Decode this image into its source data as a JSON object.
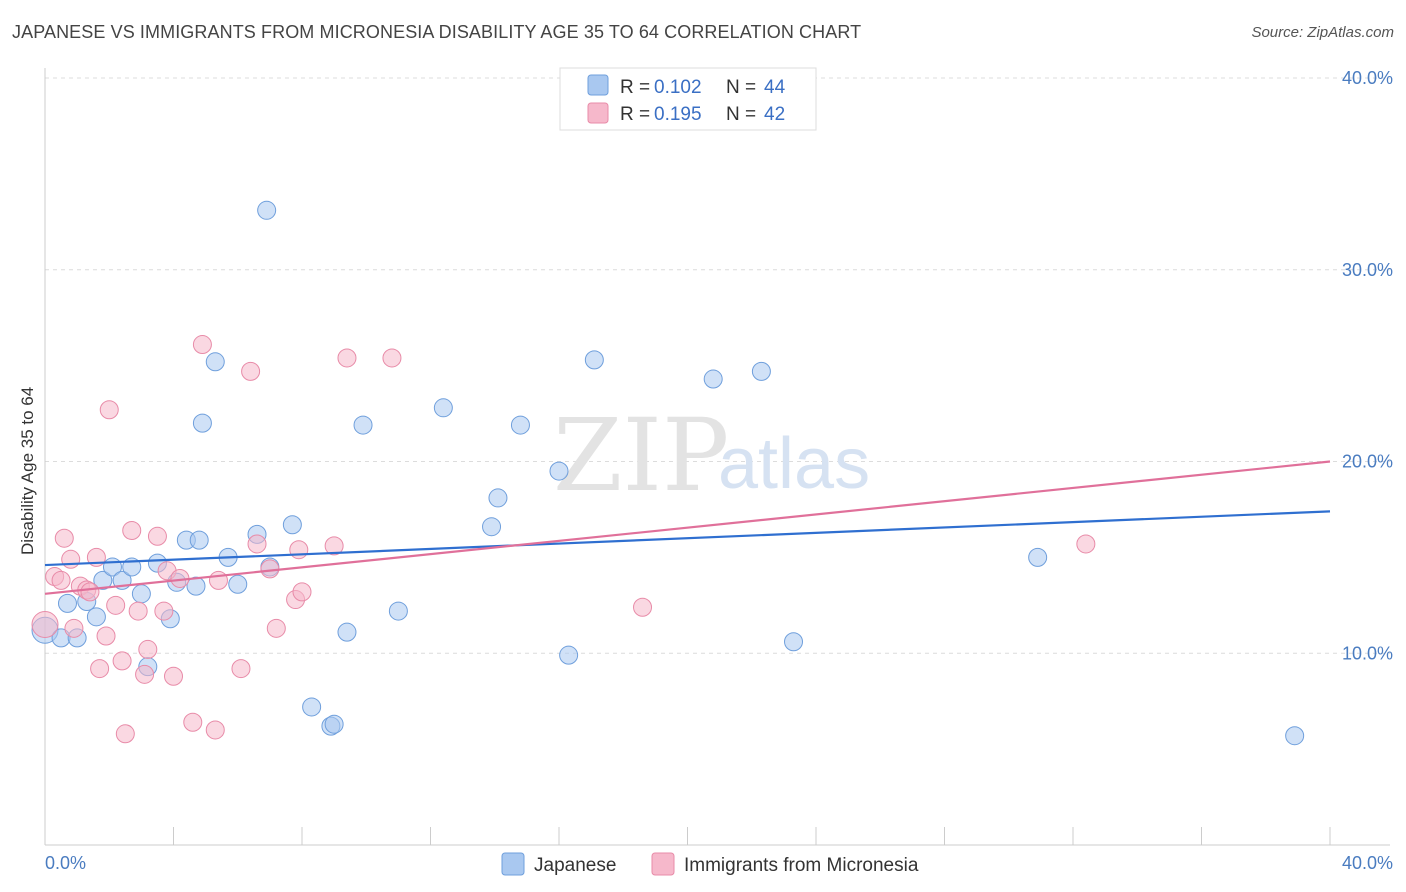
{
  "header": {
    "title": "JAPANESE VS IMMIGRANTS FROM MICRONESIA DISABILITY AGE 35 TO 64 CORRELATION CHART",
    "source": "Source: ZipAtlas.com"
  },
  "watermark": {
    "zip": "ZIP",
    "atlas": "atlas"
  },
  "legend": {
    "rows": [
      {
        "r_label": "R =",
        "r_value": "0.102",
        "n_label": "N =",
        "n_value": "44",
        "color": "#a9c8f0"
      },
      {
        "r_label": "R =",
        "r_value": "0.195",
        "n_label": "N =",
        "n_value": "42",
        "color": "#f6b8cb"
      }
    ]
  },
  "bottom_legend": [
    "Japanese",
    "Immigrants from Micronesia"
  ],
  "chart_data": {
    "type": "scatter",
    "title": "JAPANESE VS IMMIGRANTS FROM MICRONESIA DISABILITY AGE 35 TO 64 CORRELATION CHART",
    "xlabel": "",
    "ylabel": "Disability Age 35 to 64",
    "xlim": [
      0,
      40
    ],
    "ylim": [
      0,
      40
    ],
    "x_tick_labels": [
      "0.0%",
      "40.0%"
    ],
    "y_tick_labels": [
      "10.0%",
      "20.0%",
      "30.0%",
      "40.0%"
    ],
    "y_ticks": [
      10,
      20,
      30,
      40
    ],
    "grid": true,
    "legend_position": "top-center",
    "series": [
      {
        "name": "Japanese",
        "color": "#a9c8f0",
        "stroke": "#6f9fdc",
        "line_color": "#2f6fd0",
        "trend": [
          [
            0,
            14.6
          ],
          [
            40,
            17.4
          ]
        ],
        "points": [
          [
            0.0,
            11.2
          ],
          [
            0.5,
            10.8
          ],
          [
            0.7,
            12.6
          ],
          [
            1.0,
            10.8
          ],
          [
            1.3,
            12.7
          ],
          [
            1.6,
            11.9
          ],
          [
            1.8,
            13.8
          ],
          [
            2.1,
            14.5
          ],
          [
            2.4,
            13.8
          ],
          [
            2.7,
            14.5
          ],
          [
            3.0,
            13.1
          ],
          [
            3.2,
            9.3
          ],
          [
            3.5,
            14.7
          ],
          [
            3.9,
            11.8
          ],
          [
            4.1,
            13.7
          ],
          [
            4.4,
            15.9
          ],
          [
            4.7,
            13.5
          ],
          [
            4.8,
            15.9
          ],
          [
            4.9,
            22.0
          ],
          [
            5.3,
            25.2
          ],
          [
            5.7,
            15.0
          ],
          [
            6.0,
            13.6
          ],
          [
            6.6,
            16.2
          ],
          [
            6.9,
            33.1
          ],
          [
            7.0,
            14.5
          ],
          [
            7.7,
            16.7
          ],
          [
            8.3,
            7.2
          ],
          [
            8.9,
            6.2
          ],
          [
            9.0,
            6.3
          ],
          [
            9.4,
            11.1
          ],
          [
            9.9,
            21.9
          ],
          [
            11.0,
            12.2
          ],
          [
            12.4,
            22.8
          ],
          [
            13.9,
            16.6
          ],
          [
            14.1,
            18.1
          ],
          [
            14.8,
            21.9
          ],
          [
            16.0,
            19.5
          ],
          [
            16.3,
            9.9
          ],
          [
            17.1,
            25.3
          ],
          [
            20.8,
            24.3
          ],
          [
            22.3,
            24.7
          ],
          [
            23.3,
            10.6
          ],
          [
            30.9,
            15.0
          ],
          [
            38.9,
            5.7
          ]
        ]
      },
      {
        "name": "Immigrants from Micronesia",
        "color": "#f6b8cb",
        "stroke": "#e88ba8",
        "line_color": "#e0709a",
        "trend": [
          [
            0,
            13.1
          ],
          [
            40,
            20.0
          ]
        ],
        "points": [
          [
            0.0,
            11.5
          ],
          [
            0.3,
            14.0
          ],
          [
            0.5,
            13.8
          ],
          [
            0.6,
            16.0
          ],
          [
            0.8,
            14.9
          ],
          [
            0.9,
            11.3
          ],
          [
            1.1,
            13.5
          ],
          [
            1.3,
            13.3
          ],
          [
            1.4,
            13.2
          ],
          [
            1.6,
            15.0
          ],
          [
            1.7,
            9.2
          ],
          [
            1.9,
            10.9
          ],
          [
            2.0,
            22.7
          ],
          [
            2.2,
            12.5
          ],
          [
            2.4,
            9.6
          ],
          [
            2.5,
            5.8
          ],
          [
            2.7,
            16.4
          ],
          [
            2.9,
            12.2
          ],
          [
            3.1,
            8.9
          ],
          [
            3.2,
            10.2
          ],
          [
            3.5,
            16.1
          ],
          [
            3.7,
            12.2
          ],
          [
            3.8,
            14.3
          ],
          [
            4.0,
            8.8
          ],
          [
            4.2,
            13.9
          ],
          [
            4.6,
            6.4
          ],
          [
            4.9,
            26.1
          ],
          [
            5.3,
            6.0
          ],
          [
            5.4,
            13.8
          ],
          [
            6.1,
            9.2
          ],
          [
            6.4,
            24.7
          ],
          [
            6.6,
            15.7
          ],
          [
            7.0,
            14.4
          ],
          [
            7.2,
            11.3
          ],
          [
            7.8,
            12.8
          ],
          [
            7.9,
            15.4
          ],
          [
            8.0,
            13.2
          ],
          [
            9.0,
            15.6
          ],
          [
            9.4,
            25.4
          ],
          [
            10.8,
            25.4
          ],
          [
            18.6,
            12.4
          ],
          [
            32.4,
            15.7
          ]
        ]
      }
    ]
  }
}
